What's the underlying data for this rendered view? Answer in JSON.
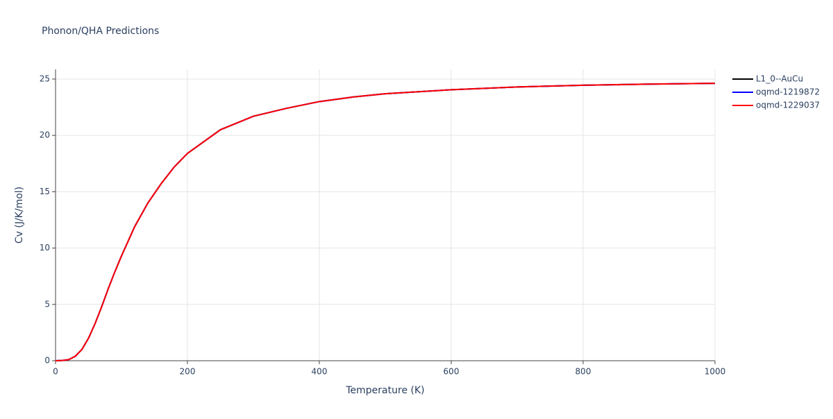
{
  "chart_data": {
    "type": "line",
    "title": "Phonon/QHA Predictions",
    "x_label": "Temperature (K)",
    "y_label": "Cv (J/K/mol)",
    "x": [
      0,
      10,
      20,
      30,
      40,
      50,
      60,
      70,
      80,
      90,
      100,
      120,
      140,
      160,
      180,
      200,
      250,
      300,
      350,
      400,
      450,
      500,
      600,
      700,
      800,
      900,
      1000
    ],
    "series": [
      {
        "name": "L1_0--AuCu",
        "color": "#000000",
        "values": [
          0,
          0.02,
          0.1,
          0.4,
          1.0,
          2.0,
          3.3,
          4.8,
          6.4,
          7.9,
          9.3,
          11.9,
          14.0,
          15.7,
          17.2,
          18.4,
          20.5,
          21.7,
          22.4,
          23.0,
          23.4,
          23.7,
          24.05,
          24.3,
          24.45,
          24.55,
          24.62
        ]
      },
      {
        "name": "oqmd-1219872",
        "color": "#0000ff",
        "values": [
          0,
          0.02,
          0.1,
          0.4,
          1.0,
          2.0,
          3.3,
          4.8,
          6.4,
          7.9,
          9.3,
          11.9,
          14.0,
          15.7,
          17.2,
          18.4,
          20.5,
          21.7,
          22.4,
          23.0,
          23.4,
          23.7,
          24.05,
          24.3,
          24.45,
          24.55,
          24.62
        ]
      },
      {
        "name": "oqmd-1229037",
        "color": "#ff0000",
        "values": [
          0,
          0.02,
          0.1,
          0.4,
          1.0,
          2.0,
          3.3,
          4.8,
          6.4,
          7.9,
          9.3,
          11.9,
          14.0,
          15.7,
          17.2,
          18.4,
          20.5,
          21.7,
          22.4,
          23.0,
          23.4,
          23.7,
          24.05,
          24.3,
          24.45,
          24.55,
          24.62
        ]
      }
    ],
    "xlim": [
      0,
      1000
    ],
    "xticks": [
      0,
      200,
      400,
      600,
      800,
      1000
    ],
    "ylim": [
      0,
      25.86
    ],
    "yticks": [
      0,
      5,
      10,
      15,
      20,
      25
    ],
    "grid": true,
    "legend": "top-right"
  }
}
